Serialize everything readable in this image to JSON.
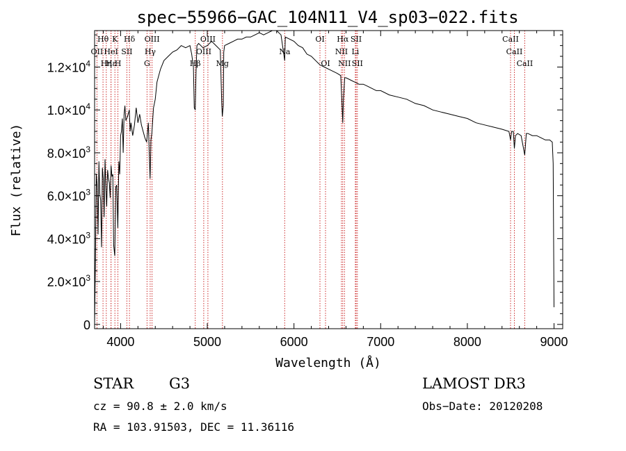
{
  "chart_data": {
    "type": "line",
    "title": "spec−55966−GAC_104N11_V4_sp03−022.fits",
    "xlabel": "Wavelength (Å)",
    "ylabel": "Flux (relative)",
    "xlim": [
      3700,
      9100
    ],
    "ylim": [
      -200,
      13700
    ],
    "x_ticks": [
      4000,
      5000,
      6000,
      7000,
      8000,
      9000
    ],
    "x_tick_labels": [
      "4000",
      "5000",
      "6000",
      "7000",
      "8000",
      "9000"
    ],
    "y_ticks": [
      0,
      2000,
      4000,
      6000,
      8000,
      10000,
      12000
    ],
    "y_tick_labels": [
      {
        "mantissa": "0",
        "exp": ""
      },
      {
        "mantissa": "2.0×10",
        "exp": "3"
      },
      {
        "mantissa": "4.0×10",
        "exp": "3"
      },
      {
        "mantissa": "6.0×10",
        "exp": "3"
      },
      {
        "mantissa": "8.0×10",
        "exp": "3"
      },
      {
        "mantissa": "1.0×10",
        "exp": "4"
      },
      {
        "mantissa": "1.2×10",
        "exp": "4"
      }
    ],
    "series": [
      {
        "name": "spectrum",
        "color": "#000000",
        "x": [
          3700,
          3710,
          3720,
          3730,
          3740,
          3750,
          3760,
          3770,
          3780,
          3790,
          3800,
          3810,
          3820,
          3830,
          3840,
          3850,
          3860,
          3870,
          3880,
          3890,
          3900,
          3910,
          3920,
          3933,
          3945,
          3955,
          3968,
          3980,
          3990,
          4000,
          4010,
          4020,
          4030,
          4040,
          4050,
          4060,
          4080,
          4100,
          4110,
          4120,
          4140,
          4160,
          4180,
          4200,
          4220,
          4240,
          4260,
          4280,
          4300,
          4320,
          4330,
          4340,
          4345,
          4350,
          4360,
          4380,
          4400,
          4420,
          4440,
          4460,
          4480,
          4500,
          4550,
          4600,
          4650,
          4700,
          4750,
          4800,
          4820,
          4840,
          4850,
          4861,
          4870,
          4880,
          4900,
          4950,
          5000,
          5050,
          5100,
          5150,
          5167,
          5173,
          5184,
          5190,
          5200,
          5250,
          5300,
          5350,
          5400,
          5450,
          5500,
          5550,
          5600,
          5650,
          5700,
          5750,
          5800,
          5850,
          5893,
          5900,
          5950,
          6000,
          6050,
          6100,
          6150,
          6200,
          6250,
          6300,
          6350,
          6400,
          6450,
          6500,
          6540,
          6555,
          6563,
          6570,
          6585,
          6600,
          6650,
          6700,
          6750,
          6800,
          6850,
          6900,
          6950,
          7000,
          7100,
          7200,
          7300,
          7400,
          7500,
          7600,
          7700,
          7800,
          7900,
          8000,
          8100,
          8200,
          8300,
          8400,
          8480,
          8498,
          8510,
          8530,
          8542,
          8555,
          8580,
          8620,
          8662,
          8680,
          8700,
          8750,
          8800,
          8850,
          8900,
          8950,
          8980,
          8990,
          9000
        ],
        "values": [
          0,
          3000,
          7000,
          6500,
          4200,
          7600,
          6100,
          5800,
          3600,
          7300,
          6800,
          5000,
          7700,
          6400,
          5500,
          7200,
          6800,
          6600,
          5900,
          7400,
          6900,
          7000,
          3700,
          3200,
          6400,
          6500,
          4500,
          7600,
          7000,
          8800,
          9000,
          9600,
          8000,
          9800,
          10200,
          9500,
          9700,
          10000,
          9000,
          9400,
          8800,
          9300,
          10100,
          9400,
          9800,
          9300,
          9000,
          8700,
          8500,
          9400,
          8000,
          6800,
          7600,
          8600,
          8900,
          10100,
          10500,
          11300,
          11600,
          11900,
          12100,
          12300,
          12500,
          12700,
          12800,
          13000,
          12900,
          13000,
          12600,
          12000,
          10100,
          10000,
          11700,
          13000,
          13100,
          12900,
          13000,
          13200,
          13000,
          12800,
          10300,
          9700,
          10200,
          12700,
          13000,
          13100,
          13200,
          13300,
          13300,
          13400,
          13400,
          13500,
          13600,
          13500,
          13600,
          13700,
          13700,
          13500,
          12300,
          13400,
          13300,
          13200,
          13000,
          12900,
          12600,
          12500,
          12300,
          12100,
          12000,
          11900,
          11800,
          11700,
          11600,
          10200,
          9400,
          10500,
          11500,
          11500,
          11400,
          11300,
          11200,
          11200,
          11100,
          11000,
          10900,
          10900,
          10700,
          10600,
          10500,
          10300,
          10200,
          10000,
          9900,
          9800,
          9700,
          9600,
          9400,
          9300,
          9200,
          9100,
          9000,
          8600,
          9000,
          9000,
          8200,
          8800,
          8900,
          8800,
          7900,
          8900,
          8900,
          8800,
          8800,
          8700,
          8600,
          8600,
          8500,
          7500,
          800
        ]
      }
    ],
    "line_markers": [
      {
        "label": "Hθ",
        "x": 3797,
        "row": 0
      },
      {
        "label": "OII",
        "x": 3727,
        "row": 1
      },
      {
        "label": "Hη",
        "x": 3835,
        "row": 2
      },
      {
        "label": "HeI",
        "x": 3889,
        "row": 1
      },
      {
        "label": "Hε",
        "x": 3889,
        "row": 2
      },
      {
        "label": "K",
        "x": 3934,
        "row": 0
      },
      {
        "label": "H",
        "x": 3969,
        "row": 2
      },
      {
        "label": "SII",
        "x": 4072,
        "row": 1
      },
      {
        "label": "Hδ",
        "x": 4102,
        "row": 0
      },
      {
        "label": "OIII",
        "x": 4363,
        "row": 0
      },
      {
        "label": "Hγ",
        "x": 4341,
        "row": 1
      },
      {
        "label": "G",
        "x": 4305,
        "row": 2
      },
      {
        "label": "Hβ",
        "x": 4861,
        "row": 2
      },
      {
        "label": "OIII",
        "x": 5007,
        "row": 0
      },
      {
        "label": "OIII",
        "x": 4959,
        "row": 1
      },
      {
        "label": "Mg",
        "x": 5175,
        "row": 2
      },
      {
        "label": "Na",
        "x": 5893,
        "row": 1
      },
      {
        "label": "OI",
        "x": 6300,
        "row": 0
      },
      {
        "label": "OI",
        "x": 6364,
        "row": 2
      },
      {
        "label": "Hα",
        "x": 6563,
        "row": 0
      },
      {
        "label": "NII",
        "x": 6548,
        "row": 1
      },
      {
        "label": "NII",
        "x": 6583,
        "row": 2
      },
      {
        "label": "SII",
        "x": 6717,
        "row": 0
      },
      {
        "label": "Li",
        "x": 6708,
        "row": 1
      },
      {
        "label": "SII",
        "x": 6731,
        "row": 2
      },
      {
        "label": "CaII",
        "x": 8498,
        "row": 0
      },
      {
        "label": "CaII",
        "x": 8542,
        "row": 1
      },
      {
        "label": "CaII",
        "x": 8662,
        "row": 2
      }
    ]
  },
  "info": {
    "object_class": "STAR",
    "subclass": "G3",
    "survey": "LAMOST DR3",
    "redshift_text": "cz = 90.8 ± 2.0 km/s",
    "obs_date_text": "Obs−Date: 20120208",
    "coords_text": "RA = 103.91503, DEC =  11.36116"
  },
  "colors": {
    "line_marker": "#cc2a2a",
    "spectrum": "#000000",
    "axes": "#000000"
  }
}
